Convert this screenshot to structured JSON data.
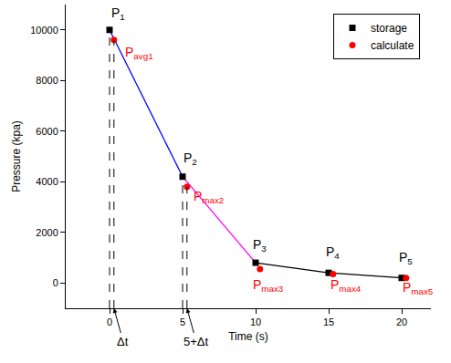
{
  "chart_data": {
    "type": "line",
    "x_label": "Time (s)",
    "y_label": "Pressure (kpa)",
    "xlim": [
      -3,
      22
    ],
    "xticks": [
      0,
      5,
      10,
      15,
      20
    ],
    "ylim": [
      -1000,
      11000
    ],
    "yticks": [
      0,
      2000,
      4000,
      6000,
      8000,
      10000
    ],
    "legend": "top right",
    "series": [
      {
        "name": "storage",
        "type": "line",
        "color": "#000000",
        "marker": "square",
        "x": [
          0,
          5,
          10,
          15,
          20
        ],
        "values": [
          10000,
          4200,
          800,
          400,
          200
        ],
        "segment_colors": [
          "#0000ff",
          "#ff00ff",
          "#000000",
          "#000000"
        ],
        "drop_lines": [
          0,
          1
        ]
      },
      {
        "name": "calculate",
        "type": "scatter",
        "color": "#ff0000",
        "marker": "circle",
        "x": [
          0.3,
          5.3,
          10.3,
          15.3,
          20.3
        ],
        "values": [
          9600,
          3800,
          550,
          350,
          200
        ],
        "drop_lines": [
          0,
          1
        ]
      }
    ],
    "annotations": [
      {
        "text": "P",
        "sub": "1",
        "x": 0.6,
        "y": 10650,
        "color": "#000000"
      },
      {
        "text": "P",
        "sub": "2",
        "x": 5.5,
        "y": 4900,
        "color": "#000000"
      },
      {
        "text": "P",
        "sub": "3",
        "x": 10.3,
        "y": 1500,
        "color": "#000000"
      },
      {
        "text": "P",
        "sub": "4",
        "x": 15.3,
        "y": 1200,
        "color": "#000000"
      },
      {
        "text": "P",
        "sub": "5",
        "x": 20.3,
        "y": 1000,
        "color": "#000000"
      },
      {
        "text": "P",
        "sub": "avg1",
        "x": 2.0,
        "y": 9100,
        "color": "#ff0000"
      },
      {
        "text": "P",
        "sub": "max2",
        "x": 6.8,
        "y": 3400,
        "color": "#ff0000"
      },
      {
        "text": "P",
        "sub": "max3",
        "x": 10.9,
        "y": -100,
        "color": "#ff0000"
      },
      {
        "text": "P",
        "sub": "max4",
        "x": 16.2,
        "y": -100,
        "color": "#ff0000"
      },
      {
        "text": "P",
        "sub": "max5",
        "x": 21.1,
        "y": -200,
        "color": "#ff0000"
      },
      {
        "text": "Δt",
        "x": 0.3,
        "y": -1000,
        "color": "#000000",
        "arrow": true
      },
      {
        "text": "5+Δt",
        "x": 5.3,
        "y": -1000,
        "color": "#000000",
        "arrow": true
      }
    ]
  }
}
